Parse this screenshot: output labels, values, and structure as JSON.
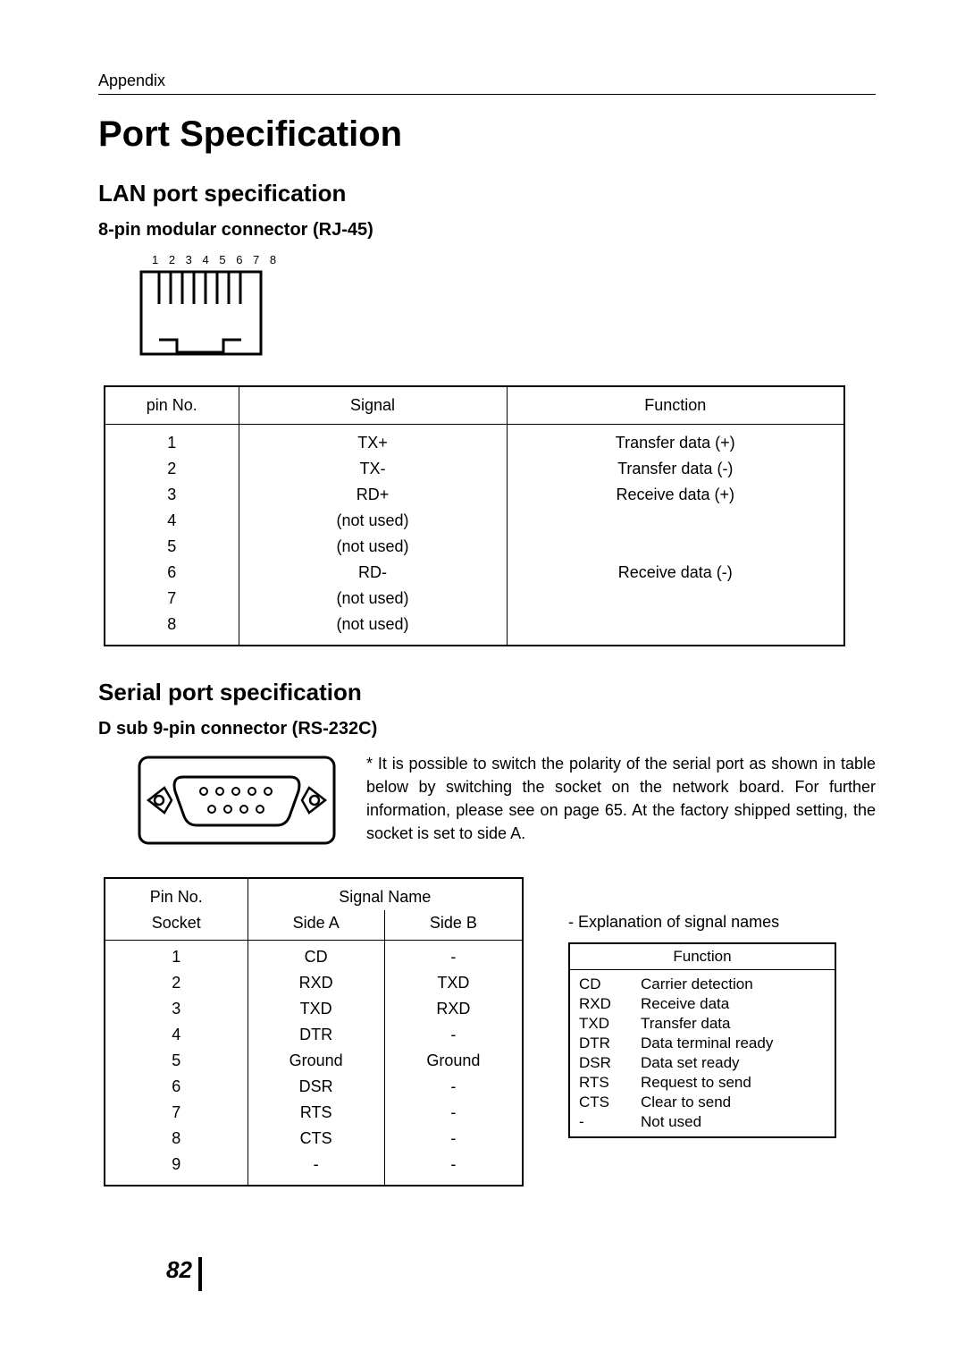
{
  "header": {
    "section": "Appendix"
  },
  "title": "Port Specification",
  "lan": {
    "heading": "LAN port specification",
    "connector": "8-pin modular connector (RJ-45)",
    "pin_labels": "1 2 3 4 5 6 7 8",
    "columns": {
      "pin": "pin No.",
      "signal": "Signal",
      "func": "Function"
    },
    "rows": [
      {
        "pin": "1",
        "signal": "TX+",
        "func": "Transfer data (+)"
      },
      {
        "pin": "2",
        "signal": "TX-",
        "func": "Transfer data (-)"
      },
      {
        "pin": "3",
        "signal": "RD+",
        "func": "Receive data (+)"
      },
      {
        "pin": "4",
        "signal": "(not used)",
        "func": ""
      },
      {
        "pin": "5",
        "signal": "(not used)",
        "func": ""
      },
      {
        "pin": "6",
        "signal": "RD-",
        "func": "Receive data (-)"
      },
      {
        "pin": "7",
        "signal": "(not used)",
        "func": ""
      },
      {
        "pin": "8",
        "signal": "(not used)",
        "func": ""
      }
    ]
  },
  "serial": {
    "heading": "Serial port specification",
    "connector": "D sub 9-pin connector (RS-232C)",
    "note": "* It is possible to switch the polarity of the serial port as shown in table below by switching the socket on the network board. For further information, please see on page 65. At the factory shipped setting, the socket is set to side A.",
    "columns": {
      "pin": "Pin No.",
      "signal": "Signal Name",
      "socket": "Socket",
      "sideA": "Side A",
      "sideB": "Side B"
    },
    "rows": [
      {
        "pin": "1",
        "a": "CD",
        "b": "-"
      },
      {
        "pin": "2",
        "a": "RXD",
        "b": "TXD"
      },
      {
        "pin": "3",
        "a": "TXD",
        "b": "RXD"
      },
      {
        "pin": "4",
        "a": "DTR",
        "b": "-"
      },
      {
        "pin": "5",
        "a": "Ground",
        "b": "Ground"
      },
      {
        "pin": "6",
        "a": "DSR",
        "b": "-"
      },
      {
        "pin": "7",
        "a": "RTS",
        "b": "-"
      },
      {
        "pin": "8",
        "a": "CTS",
        "b": "-"
      },
      {
        "pin": "9",
        "a": "-",
        "b": "-"
      }
    ]
  },
  "explanation": {
    "title": "- Explanation of signal names",
    "header": "Function",
    "rows": [
      {
        "abbr": "CD",
        "desc": "Carrier detection"
      },
      {
        "abbr": "RXD",
        "desc": "Receive data"
      },
      {
        "abbr": "TXD",
        "desc": "Transfer data"
      },
      {
        "abbr": "DTR",
        "desc": "Data terminal ready"
      },
      {
        "abbr": "DSR",
        "desc": "Data set ready"
      },
      {
        "abbr": "RTS",
        "desc": "Request to send"
      },
      {
        "abbr": "CTS",
        "desc": "Clear to send"
      },
      {
        "abbr": "-",
        "desc": "Not used"
      }
    ]
  },
  "page": "82"
}
